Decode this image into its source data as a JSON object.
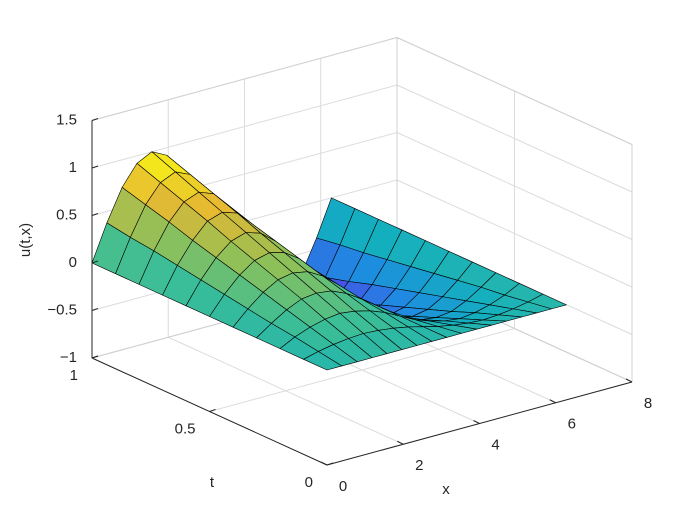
{
  "chart_data": {
    "type": "surface",
    "xlabel": "x",
    "ylabel": "t",
    "zlabel": "u(t,x)",
    "x": [
      0,
      0.39,
      0.79,
      1.18,
      1.57,
      1.96,
      2.36,
      2.75,
      3.14,
      3.53,
      3.93,
      4.32,
      4.71,
      5.11,
      5.5,
      5.89,
      6.28
    ],
    "t": [
      0,
      0.1,
      0.2,
      0.3,
      0.4,
      0.5,
      0.6,
      0.7,
      0.8,
      0.9,
      1
    ],
    "z": [
      [
        0,
        0,
        0,
        0,
        0,
        0,
        0,
        0,
        0,
        0,
        0,
        0,
        0,
        0,
        0,
        0,
        0
      ],
      [
        0,
        0.04,
        0.07,
        0.09,
        0.1,
        0.09,
        0.07,
        0.04,
        0,
        -0.04,
        -0.07,
        -0.09,
        -0.1,
        -0.09,
        -0.07,
        -0.04,
        0
      ],
      [
        0,
        0.08,
        0.14,
        0.18,
        0.2,
        0.18,
        0.14,
        0.08,
        0,
        -0.08,
        -0.14,
        -0.18,
        -0.2,
        -0.18,
        -0.14,
        -0.08,
        0
      ],
      [
        0,
        0.11,
        0.21,
        0.28,
        0.3,
        0.28,
        0.21,
        0.11,
        0,
        -0.11,
        -0.21,
        -0.28,
        -0.3,
        -0.28,
        -0.21,
        -0.11,
        0
      ],
      [
        0,
        0.15,
        0.28,
        0.37,
        0.4,
        0.37,
        0.28,
        0.15,
        0,
        -0.15,
        -0.28,
        -0.37,
        -0.4,
        -0.37,
        -0.28,
        -0.15,
        0
      ],
      [
        0,
        0.19,
        0.35,
        0.46,
        0.5,
        0.46,
        0.35,
        0.19,
        0,
        -0.19,
        -0.35,
        -0.46,
        -0.5,
        -0.46,
        -0.35,
        -0.19,
        0
      ],
      [
        0,
        0.23,
        0.42,
        0.55,
        0.6,
        0.55,
        0.42,
        0.23,
        0,
        -0.23,
        -0.42,
        -0.55,
        -0.6,
        -0.55,
        -0.42,
        -0.23,
        0
      ],
      [
        0,
        0.27,
        0.49,
        0.65,
        0.7,
        0.65,
        0.49,
        0.27,
        0,
        -0.27,
        -0.49,
        -0.65,
        -0.7,
        -0.65,
        -0.49,
        -0.27,
        0
      ],
      [
        0,
        0.31,
        0.57,
        0.74,
        0.8,
        0.74,
        0.57,
        0.31,
        0,
        -0.31,
        -0.57,
        -0.74,
        -0.8,
        -0.74,
        -0.57,
        -0.31,
        0
      ],
      [
        0,
        0.34,
        0.64,
        0.83,
        0.9,
        0.83,
        0.64,
        0.34,
        0,
        -0.34,
        -0.64,
        -0.83,
        -0.9,
        -0.83,
        -0.64,
        -0.34,
        0
      ],
      [
        0,
        0.38,
        0.71,
        0.92,
        1,
        0.92,
        0.71,
        0.38,
        0,
        -0.38,
        -0.71,
        -0.92,
        -1,
        -0.92,
        -0.71,
        -0.38,
        0
      ]
    ],
    "xlim": [
      0,
      8
    ],
    "xticks": [
      0,
      2,
      4,
      6,
      8
    ],
    "ylim": [
      0,
      1
    ],
    "yticks": [
      0,
      0.5,
      1
    ],
    "zlim": [
      -1,
      1.5
    ],
    "zticks": [
      {
        "value": -1,
        "label": "−1"
      },
      {
        "value": -0.5,
        "label": "−0.5"
      },
      0,
      0.5,
      1,
      1.5
    ],
    "clim": [
      -1,
      1
    ],
    "colormap": [
      "#3e26a8",
      "#4650e6",
      "#1e8ce1",
      "#14afbe",
      "#3cbe96",
      "#8cc05a",
      "#e6b932",
      "#f9fa14"
    ],
    "grid": true
  }
}
